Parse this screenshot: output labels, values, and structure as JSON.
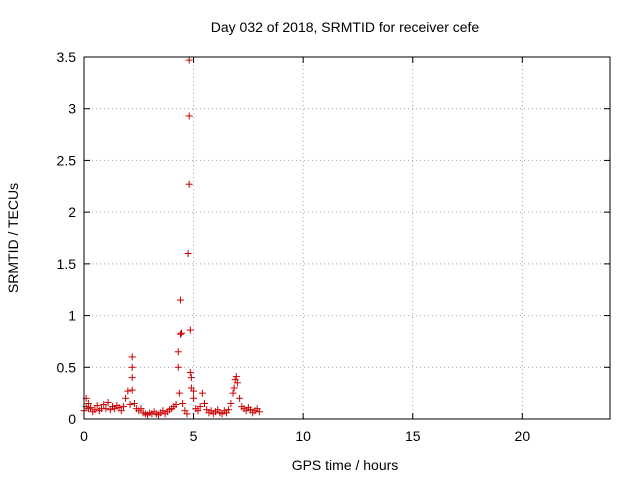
{
  "chart_data": {
    "type": "scatter",
    "title": "Day 032 of 2018, SRMTID for receiver cefe",
    "xlabel": "GPS time / hours",
    "ylabel": "SRMTID / TECUs",
    "xlim": [
      0,
      24
    ],
    "ylim": [
      0,
      3.5
    ],
    "x_ticks": [
      0,
      5,
      10,
      15,
      20
    ],
    "x_tick_labels": [
      "0",
      "5",
      "10",
      "15",
      "20"
    ],
    "y_ticks": [
      0,
      0.5,
      1,
      1.5,
      2,
      2.5,
      3,
      3.5
    ],
    "y_tick_labels": [
      "0",
      "0.5",
      "1",
      "1.5",
      "2",
      "2.5",
      "3",
      "3.5"
    ],
    "grid": true,
    "marker": "+",
    "series_color": "#cc0000",
    "series": [
      {
        "name": "SRMTID",
        "points": [
          [
            0.0,
            0.08
          ],
          [
            0.1,
            0.2
          ],
          [
            0.1,
            0.12
          ],
          [
            0.2,
            0.1
          ],
          [
            0.2,
            0.15
          ],
          [
            0.3,
            0.11
          ],
          [
            0.4,
            0.07
          ],
          [
            0.5,
            0.09
          ],
          [
            0.6,
            0.13
          ],
          [
            0.7,
            0.08
          ],
          [
            0.8,
            0.1
          ],
          [
            0.9,
            0.14
          ],
          [
            1.0,
            0.1
          ],
          [
            1.1,
            0.16
          ],
          [
            1.2,
            0.09
          ],
          [
            1.3,
            0.12
          ],
          [
            1.4,
            0.1
          ],
          [
            1.5,
            0.13
          ],
          [
            1.6,
            0.11
          ],
          [
            1.7,
            0.08
          ],
          [
            1.8,
            0.12
          ],
          [
            1.9,
            0.2
          ],
          [
            2.0,
            0.27
          ],
          [
            2.1,
            0.14
          ],
          [
            2.2,
            0.6
          ],
          [
            2.2,
            0.5
          ],
          [
            2.2,
            0.4
          ],
          [
            2.2,
            0.28
          ],
          [
            2.3,
            0.15
          ],
          [
            2.4,
            0.1
          ],
          [
            2.5,
            0.08
          ],
          [
            2.6,
            0.1
          ],
          [
            2.7,
            0.06
          ],
          [
            2.8,
            0.05
          ],
          [
            2.9,
            0.04
          ],
          [
            3.0,
            0.06
          ],
          [
            3.1,
            0.05
          ],
          [
            3.2,
            0.07
          ],
          [
            3.3,
            0.05
          ],
          [
            3.4,
            0.04
          ],
          [
            3.5,
            0.06
          ],
          [
            3.6,
            0.08
          ],
          [
            3.7,
            0.05
          ],
          [
            3.8,
            0.07
          ],
          [
            3.9,
            0.09
          ],
          [
            4.0,
            0.1
          ],
          [
            4.1,
            0.12
          ],
          [
            4.2,
            0.14
          ],
          [
            4.3,
            0.65
          ],
          [
            4.3,
            0.5
          ],
          [
            4.35,
            0.25
          ],
          [
            4.4,
            0.82
          ],
          [
            4.45,
            0.83
          ],
          [
            4.4,
            1.15
          ],
          [
            4.5,
            0.15
          ],
          [
            4.6,
            0.08
          ],
          [
            4.7,
            0.05
          ],
          [
            4.75,
            1.6
          ],
          [
            4.8,
            3.47
          ],
          [
            4.8,
            2.93
          ],
          [
            4.8,
            2.27
          ],
          [
            4.85,
            0.86
          ],
          [
            4.85,
            0.45
          ],
          [
            4.9,
            0.4
          ],
          [
            4.9,
            0.3
          ],
          [
            5.0,
            0.27
          ],
          [
            5.0,
            0.2
          ],
          [
            5.1,
            0.1
          ],
          [
            5.2,
            0.08
          ],
          [
            5.3,
            0.12
          ],
          [
            5.4,
            0.25
          ],
          [
            5.5,
            0.15
          ],
          [
            5.6,
            0.09
          ],
          [
            5.7,
            0.06
          ],
          [
            5.8,
            0.08
          ],
          [
            5.9,
            0.05
          ],
          [
            6.0,
            0.07
          ],
          [
            6.1,
            0.09
          ],
          [
            6.2,
            0.06
          ],
          [
            6.3,
            0.05
          ],
          [
            6.4,
            0.08
          ],
          [
            6.5,
            0.06
          ],
          [
            6.6,
            0.09
          ],
          [
            6.7,
            0.15
          ],
          [
            6.8,
            0.25
          ],
          [
            6.85,
            0.3
          ],
          [
            6.9,
            0.38
          ],
          [
            6.95,
            0.41
          ],
          [
            7.0,
            0.35
          ],
          [
            7.1,
            0.2
          ],
          [
            7.2,
            0.12
          ],
          [
            7.3,
            0.1
          ],
          [
            7.4,
            0.08
          ],
          [
            7.5,
            0.11
          ],
          [
            7.6,
            0.09
          ],
          [
            7.7,
            0.06
          ],
          [
            7.8,
            0.08
          ],
          [
            7.9,
            0.1
          ],
          [
            8.0,
            0.07
          ]
        ]
      }
    ]
  }
}
